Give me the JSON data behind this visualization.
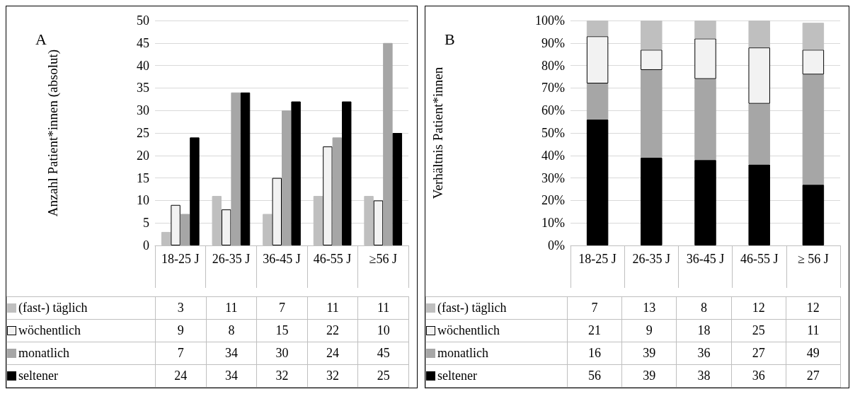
{
  "chart_data": [
    {
      "type": "bar",
      "title": "A",
      "ylabel": "Anzahl Patient*innen (absolut)",
      "categories": [
        "18-25 J",
        "26-35 J",
        "36-45 J",
        "46-55 J",
        "≥56 J"
      ],
      "series": [
        {
          "name": "(fast-) täglich",
          "color": "#bfbfbf",
          "values": [
            3,
            11,
            7,
            11,
            11
          ]
        },
        {
          "name": "wöchentlich",
          "color": "#f2f2f2",
          "values": [
            9,
            8,
            15,
            22,
            10
          ]
        },
        {
          "name": "monatlich",
          "color": "#a6a6a6",
          "values": [
            7,
            34,
            30,
            24,
            45
          ]
        },
        {
          "name": "seltener",
          "color": "#000000",
          "values": [
            24,
            34,
            32,
            32,
            25
          ]
        }
      ],
      "ylim": [
        0,
        50
      ],
      "yticks": [
        0,
        5,
        10,
        15,
        20,
        25,
        30,
        35,
        40,
        45,
        50
      ],
      "grid": "y",
      "legend": "bottom",
      "data_labels": true
    },
    {
      "type": "bar",
      "stacked": true,
      "title": "B",
      "ylabel": "Verhältnis Patient*innen",
      "categories": [
        "18-25 J",
        "26-35 J",
        "36-45 J",
        "46-55 J",
        "≥ 56 J"
      ],
      "series": [
        {
          "name": "(fast-) täglich",
          "color": "#bfbfbf",
          "values": [
            7,
            13,
            8,
            12,
            12
          ]
        },
        {
          "name": "wöchentlich",
          "color": "#f2f2f2",
          "values": [
            21,
            9,
            18,
            25,
            11
          ]
        },
        {
          "name": "monatlich",
          "color": "#a6a6a6",
          "values": [
            16,
            39,
            36,
            27,
            49
          ]
        },
        {
          "name": "seltener",
          "color": "#000000",
          "values": [
            56,
            39,
            38,
            36,
            27
          ]
        }
      ],
      "ylim": [
        0,
        100
      ],
      "yticks": [
        {
          "value": 0,
          "label": "0%"
        },
        {
          "value": 10,
          "label": "10%"
        },
        {
          "value": 20,
          "label": "20%"
        },
        {
          "value": 30,
          "label": "30%"
        },
        {
          "value": 40,
          "label": "40%"
        },
        {
          "value": 50,
          "label": "50%"
        },
        {
          "value": 60,
          "label": "60%"
        },
        {
          "value": 70,
          "label": "70%"
        },
        {
          "value": 80,
          "label": "80%"
        },
        {
          "value": 90,
          "label": "90%"
        },
        {
          "value": 100,
          "label": "100%"
        }
      ],
      "grid": "y",
      "legend": "bottom",
      "data_labels": true
    }
  ]
}
